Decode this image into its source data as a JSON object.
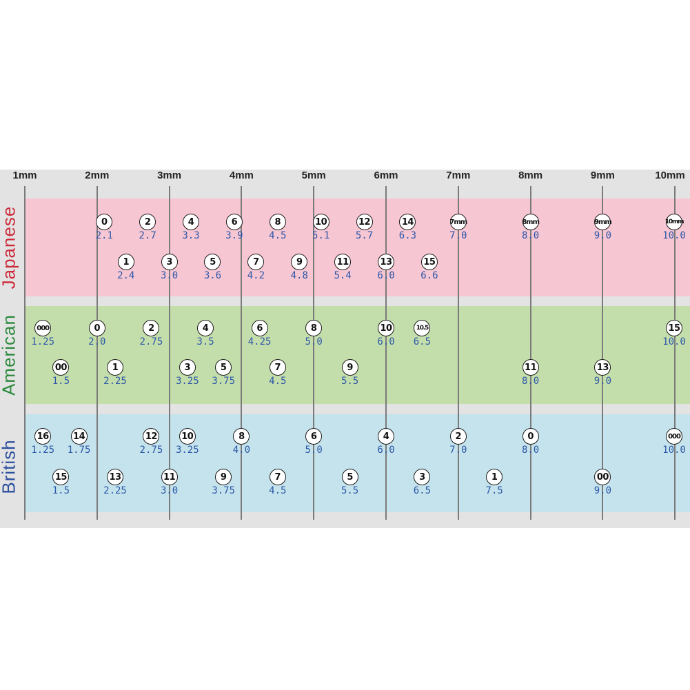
{
  "chart_data": {
    "type": "table",
    "x_axis": {
      "unit": "mm",
      "range": [
        1,
        10
      ],
      "tick_labels": [
        "1mm",
        "2mm",
        "3mm",
        "4mm",
        "5mm",
        "6mm",
        "7mm",
        "8mm",
        "9mm",
        "10mm"
      ]
    },
    "grid": "vertical lines at each mm",
    "colors": {
      "japanese_band": "#f7c6d3",
      "american_band": "#c4deab",
      "british_band": "#c5e3ec",
      "japanese_label": "#cc2b3a",
      "american_label": "#2c8a3c",
      "british_label": "#2b4f9e",
      "mm_value": "#2b57a8"
    },
    "series": [
      {
        "name": "Japanese",
        "rows": [
          [
            {
              "size": "0",
              "mm": "2.1"
            },
            {
              "size": "2",
              "mm": "2.7"
            },
            {
              "size": "4",
              "mm": "3.3"
            },
            {
              "size": "6",
              "mm": "3.9"
            },
            {
              "size": "8",
              "mm": "4.5"
            },
            {
              "size": "10",
              "mm": "5.1"
            },
            {
              "size": "12",
              "mm": "5.7"
            },
            {
              "size": "14",
              "mm": "6.3"
            },
            {
              "size": "7mm",
              "mm": "7.0"
            },
            {
              "size": "8mm",
              "mm": "8.0"
            },
            {
              "size": "9mm",
              "mm": "9.0"
            },
            {
              "size": "10mm",
              "mm": "10.0"
            }
          ],
          [
            {
              "size": "1",
              "mm": "2.4"
            },
            {
              "size": "3",
              "mm": "3.0"
            },
            {
              "size": "5",
              "mm": "3.6"
            },
            {
              "size": "7",
              "mm": "4.2"
            },
            {
              "size": "9",
              "mm": "4.8"
            },
            {
              "size": "11",
              "mm": "5.4"
            },
            {
              "size": "13",
              "mm": "6.0"
            },
            {
              "size": "15",
              "mm": "6.6"
            }
          ]
        ]
      },
      {
        "name": "American",
        "rows": [
          [
            {
              "size": "000",
              "mm": "1.25"
            },
            {
              "size": "0",
              "mm": "2.0"
            },
            {
              "size": "2",
              "mm": "2.75"
            },
            {
              "size": "4",
              "mm": "3.5"
            },
            {
              "size": "6",
              "mm": "4.25"
            },
            {
              "size": "8",
              "mm": "5.0"
            },
            {
              "size": "10",
              "mm": "6.0"
            },
            {
              "size": "10.5",
              "mm": "6.5"
            },
            {
              "size": "15",
              "mm": "10.0"
            }
          ],
          [
            {
              "size": "00",
              "mm": "1.5"
            },
            {
              "size": "1",
              "mm": "2.25"
            },
            {
              "size": "3",
              "mm": "3.25"
            },
            {
              "size": "5",
              "mm": "3.75"
            },
            {
              "size": "7",
              "mm": "4.5"
            },
            {
              "size": "9",
              "mm": "5.5"
            },
            {
              "size": "11",
              "mm": "8.0"
            },
            {
              "size": "13",
              "mm": "9.0"
            }
          ]
        ]
      },
      {
        "name": "British",
        "rows": [
          [
            {
              "size": "16",
              "mm": "1.25"
            },
            {
              "size": "14",
              "mm": "1.75"
            },
            {
              "size": "12",
              "mm": "2.75"
            },
            {
              "size": "10",
              "mm": "3.25"
            },
            {
              "size": "8",
              "mm": "4.0"
            },
            {
              "size": "6",
              "mm": "5.0"
            },
            {
              "size": "4",
              "mm": "6.0"
            },
            {
              "size": "2",
              "mm": "7.0"
            },
            {
              "size": "0",
              "mm": "8.0"
            },
            {
              "size": "000",
              "mm": "10.0"
            }
          ],
          [
            {
              "size": "15",
              "mm": "1.5"
            },
            {
              "size": "13",
              "mm": "2.25"
            },
            {
              "size": "11",
              "mm": "3.0"
            },
            {
              "size": "9",
              "mm": "3.75"
            },
            {
              "size": "7",
              "mm": "4.5"
            },
            {
              "size": "5",
              "mm": "5.5"
            },
            {
              "size": "3",
              "mm": "6.5"
            },
            {
              "size": "1",
              "mm": "7.5"
            },
            {
              "size": "00",
              "mm": "9.0"
            }
          ]
        ]
      }
    ]
  }
}
